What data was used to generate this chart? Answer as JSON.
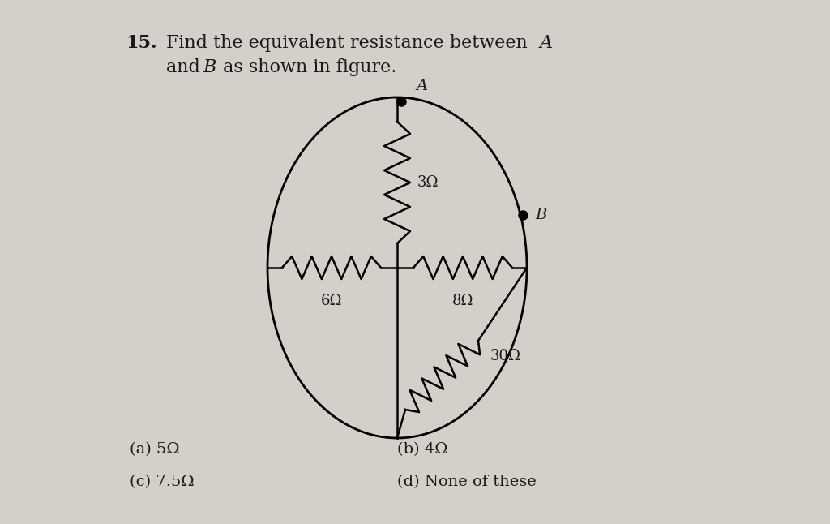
{
  "title_number": "15.",
  "title_text": "Find the equivalent resistance between ",
  "title_A": "A",
  "title_line2": "and ",
  "title_B": "B",
  "title_line2_end": " as shown in figure.",
  "bg_color": "#d4cfc8",
  "text_color": "#1a1a1a",
  "resistor_3_label": "3Ω",
  "resistor_6_label": "6Ω",
  "resistor_8_label": "8Ω",
  "resistor_30_label": "30Ω",
  "options": [
    "(a) 5Ω",
    "(b) 4Ω",
    "(c) 7.5Ω",
    "(d) None of these"
  ],
  "font_size_title": 16,
  "font_size_options": 14,
  "font_size_labels": 13
}
